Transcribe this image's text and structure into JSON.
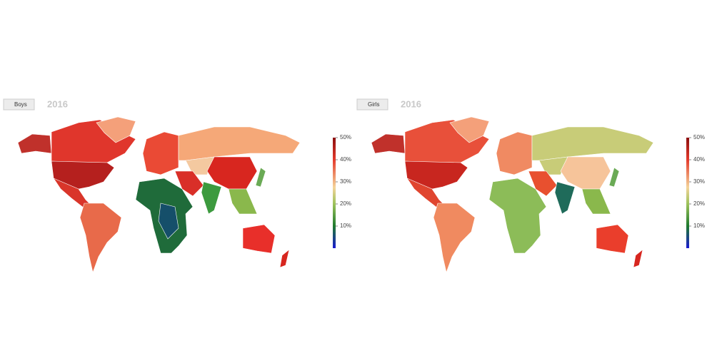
{
  "panels": [
    {
      "button": "Boys",
      "year": "2016",
      "legend": {
        "lim": [
          0,
          50
        ],
        "ticks": [
          {
            "value": 50,
            "label": "50%"
          },
          {
            "value": 40,
            "label": "40%"
          },
          {
            "value": 30,
            "label": "30%"
          },
          {
            "value": 20,
            "label": "20%"
          },
          {
            "value": 10,
            "label": "10%"
          }
        ]
      }
    },
    {
      "button": "Girls",
      "year": "2016",
      "legend": {
        "lim": [
          0,
          50
        ],
        "ticks": [
          {
            "value": 50,
            "label": "50%"
          },
          {
            "value": 40,
            "label": "40%"
          },
          {
            "value": 30,
            "label": "30%"
          },
          {
            "value": 20,
            "label": "20%"
          },
          {
            "value": 10,
            "label": "10%"
          }
        ]
      }
    }
  ]
}
